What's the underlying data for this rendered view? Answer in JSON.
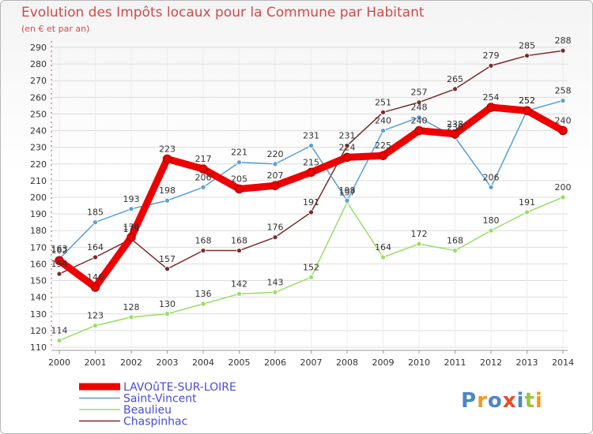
{
  "chart_data": {
    "type": "line",
    "title": "Evolution des Impôts locaux pour la Commune par Habitant",
    "subtitle": "(en € et par an)",
    "xlabel": "",
    "ylabel": "",
    "categories": [
      "2000",
      "2001",
      "2002",
      "2003",
      "2004",
      "2005",
      "2006",
      "2007",
      "2008",
      "2009",
      "2010",
      "2011",
      "2012",
      "2013",
      "2014"
    ],
    "ylim": [
      110,
      290
    ],
    "yticks": [
      110,
      120,
      130,
      140,
      150,
      160,
      170,
      180,
      190,
      200,
      210,
      220,
      230,
      240,
      250,
      260,
      270,
      280,
      290
    ],
    "grid": true,
    "legend_position": "bottom-left",
    "series": [
      {
        "name": "Chaspinhac",
        "color": "#7a2a2a",
        "width": 1.5,
        "values": [
          154,
          164,
          175,
          157,
          168,
          168,
          176,
          191,
          231,
          251,
          257,
          265,
          279,
          285,
          288
        ]
      },
      {
        "name": "Beaulieu",
        "color": "#99dd66",
        "width": 1.5,
        "values": [
          114,
          123,
          128,
          130,
          136,
          142,
          143,
          152,
          197,
          164,
          172,
          168,
          180,
          191,
          200
        ]
      },
      {
        "name": "Saint-Vincent",
        "color": "#5a9fd4",
        "width": 1.5,
        "values": [
          163,
          185,
          193,
          198,
          206,
          221,
          220,
          231,
          198,
          240,
          248,
          236,
          206,
          252,
          258
        ]
      },
      {
        "name": "LAVOûTE-SUR-LOIRE",
        "color": "#ee0000",
        "width": 9,
        "values": [
          162,
          146,
          176,
          223,
          217,
          205,
          207,
          215,
          224,
          225,
          240,
          238,
          254,
          252,
          240
        ]
      }
    ],
    "legend_order": [
      "LAVOûTE-SUR-LOIRE",
      "Saint-Vincent",
      "Beaulieu",
      "Chaspinhac"
    ]
  },
  "watermark": "Proxiti"
}
